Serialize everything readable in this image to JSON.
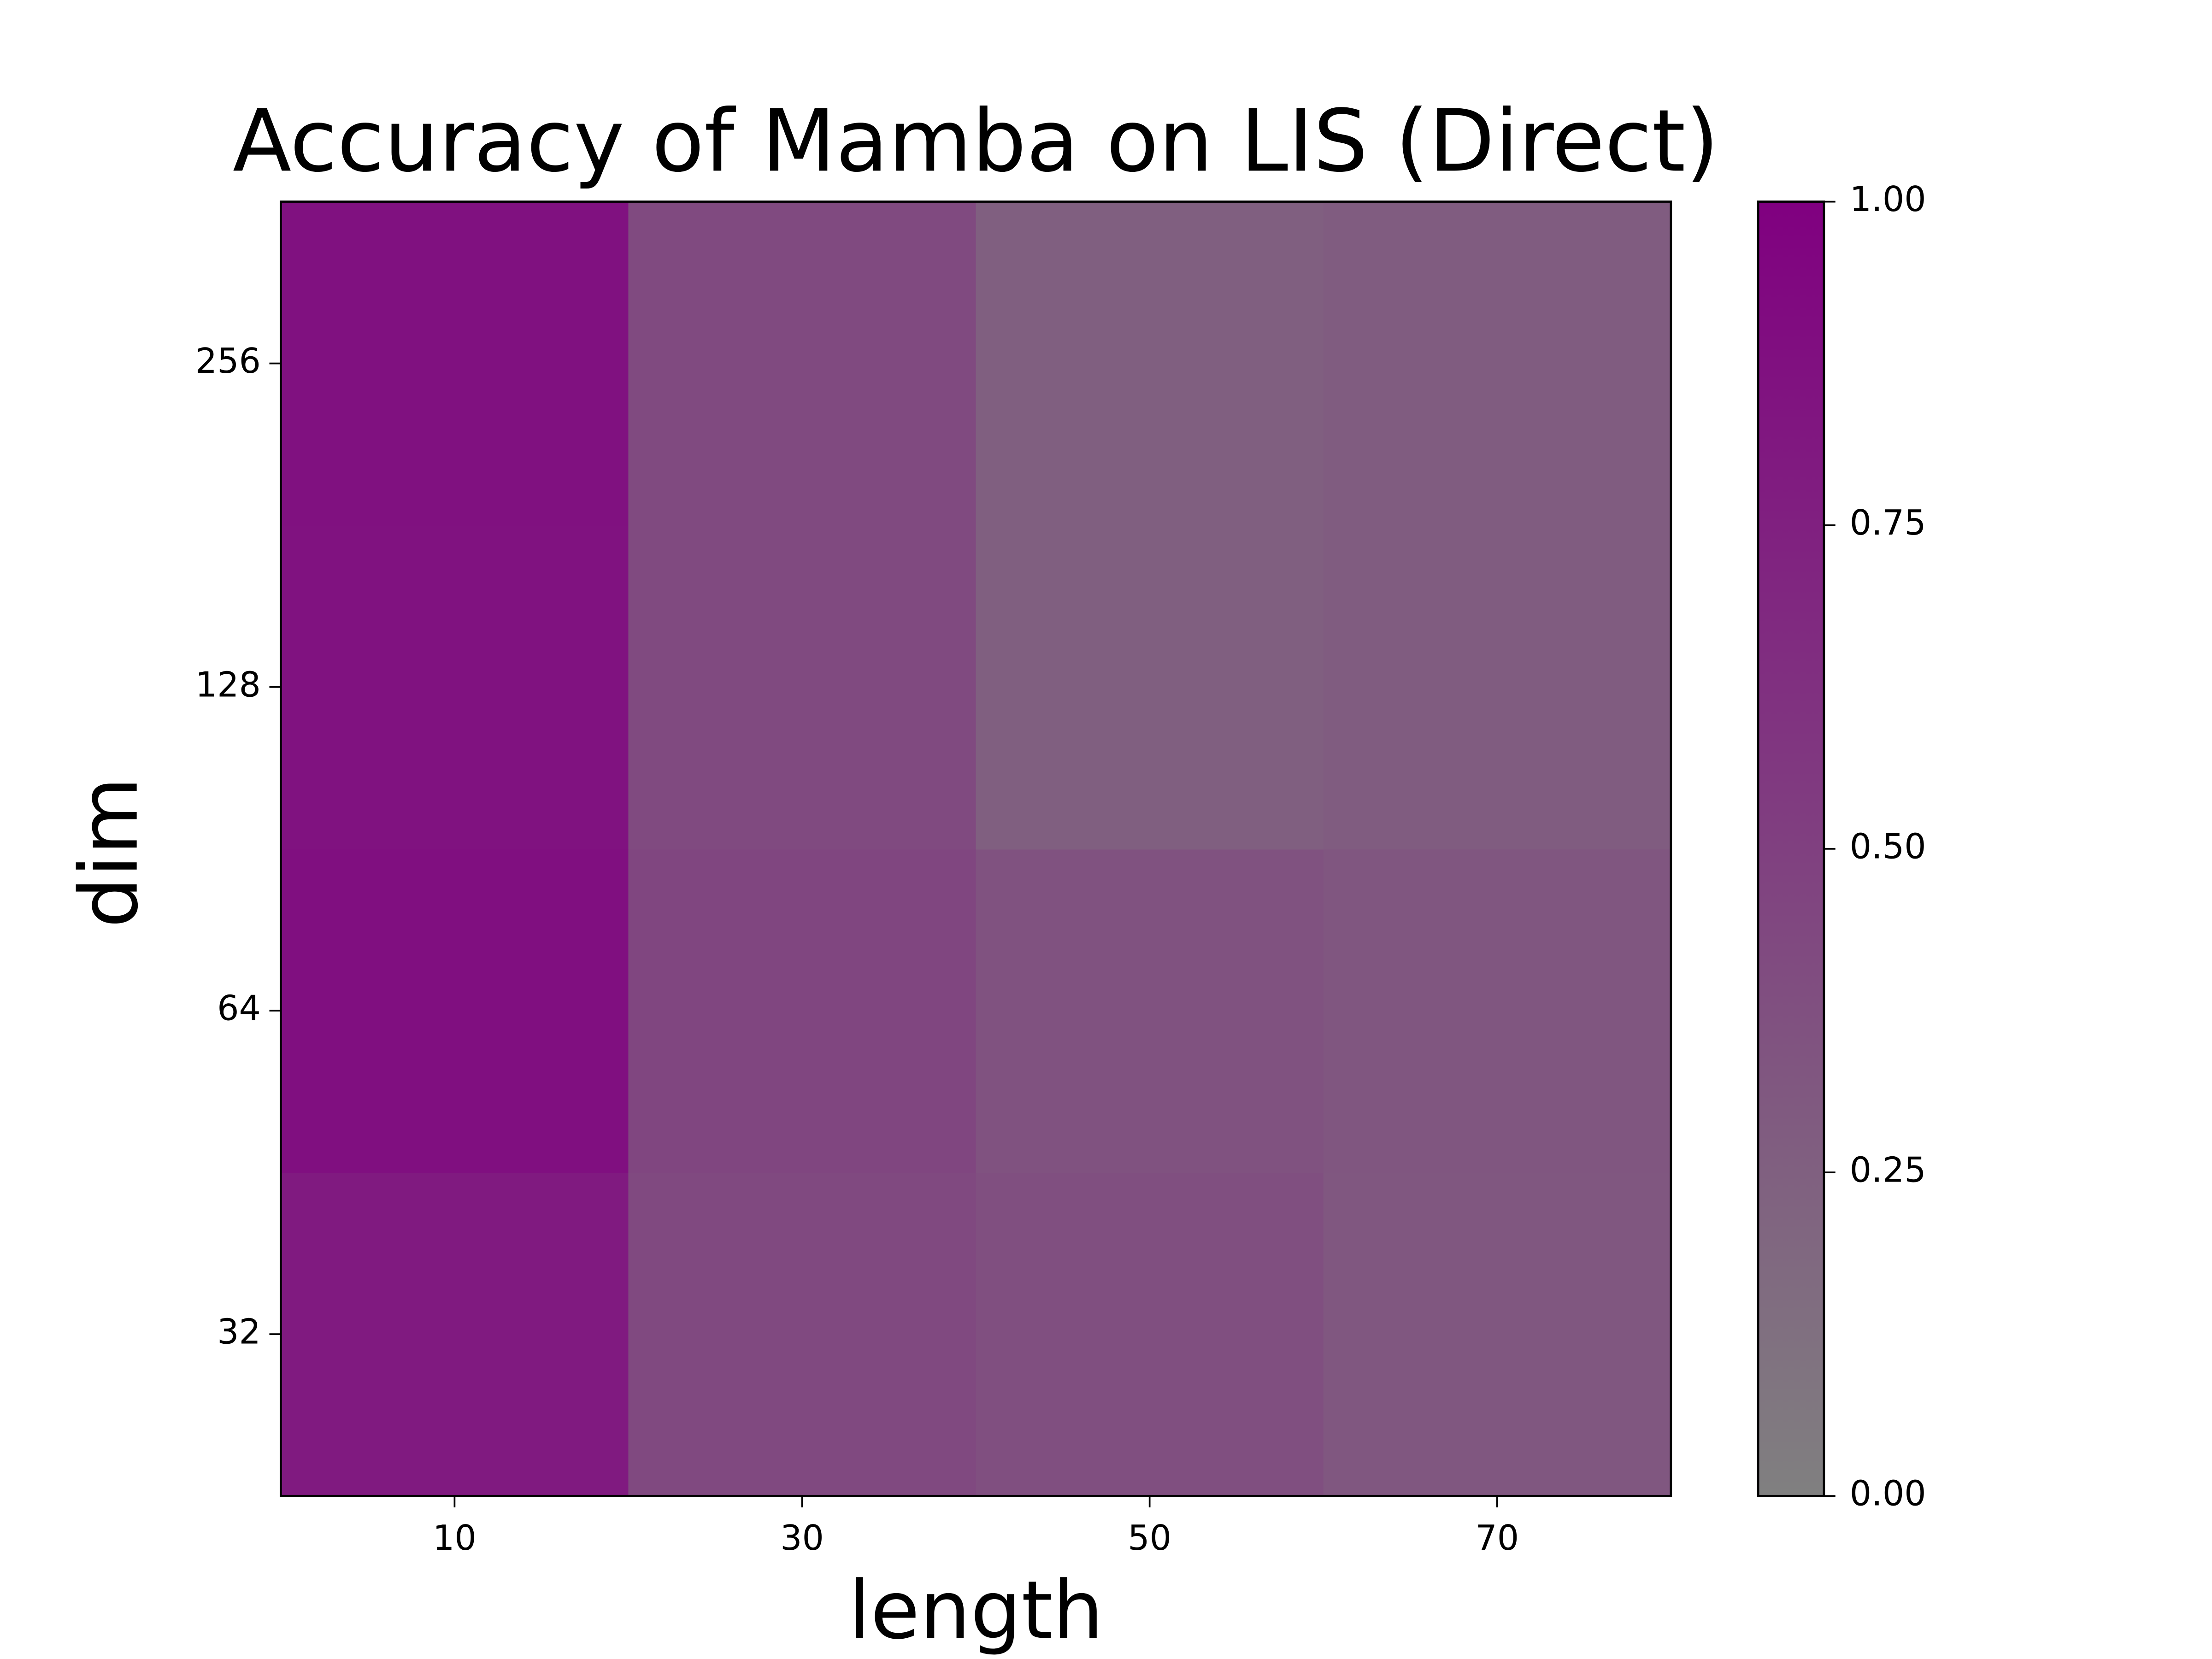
{
  "chart_data": {
    "type": "heatmap",
    "title": "Accuracy of Mamba on LIS (Direct)",
    "x_label": "length",
    "y_label": "dim",
    "x_categories": [
      10,
      30,
      50,
      70
    ],
    "y_categories": [
      32,
      64,
      128,
      256
    ],
    "values": [
      [
        0.8,
        0.43,
        0.38,
        0.32
      ],
      [
        0.88,
        0.45,
        0.36,
        0.33
      ],
      [
        0.86,
        0.42,
        0.26,
        0.28
      ],
      [
        0.87,
        0.42,
        0.26,
        0.28
      ]
    ],
    "colormap": [
      "#808080",
      "#800080"
    ],
    "clim": [
      0,
      1
    ],
    "cticks": [
      {
        "value": 0,
        "label": "0.00"
      },
      {
        "value": 0.25,
        "label": "0.25"
      },
      {
        "value": 0.5,
        "label": "0.50"
      },
      {
        "value": 0.75,
        "label": "0.75"
      },
      {
        "value": 1,
        "label": "1.00"
      }
    ]
  }
}
